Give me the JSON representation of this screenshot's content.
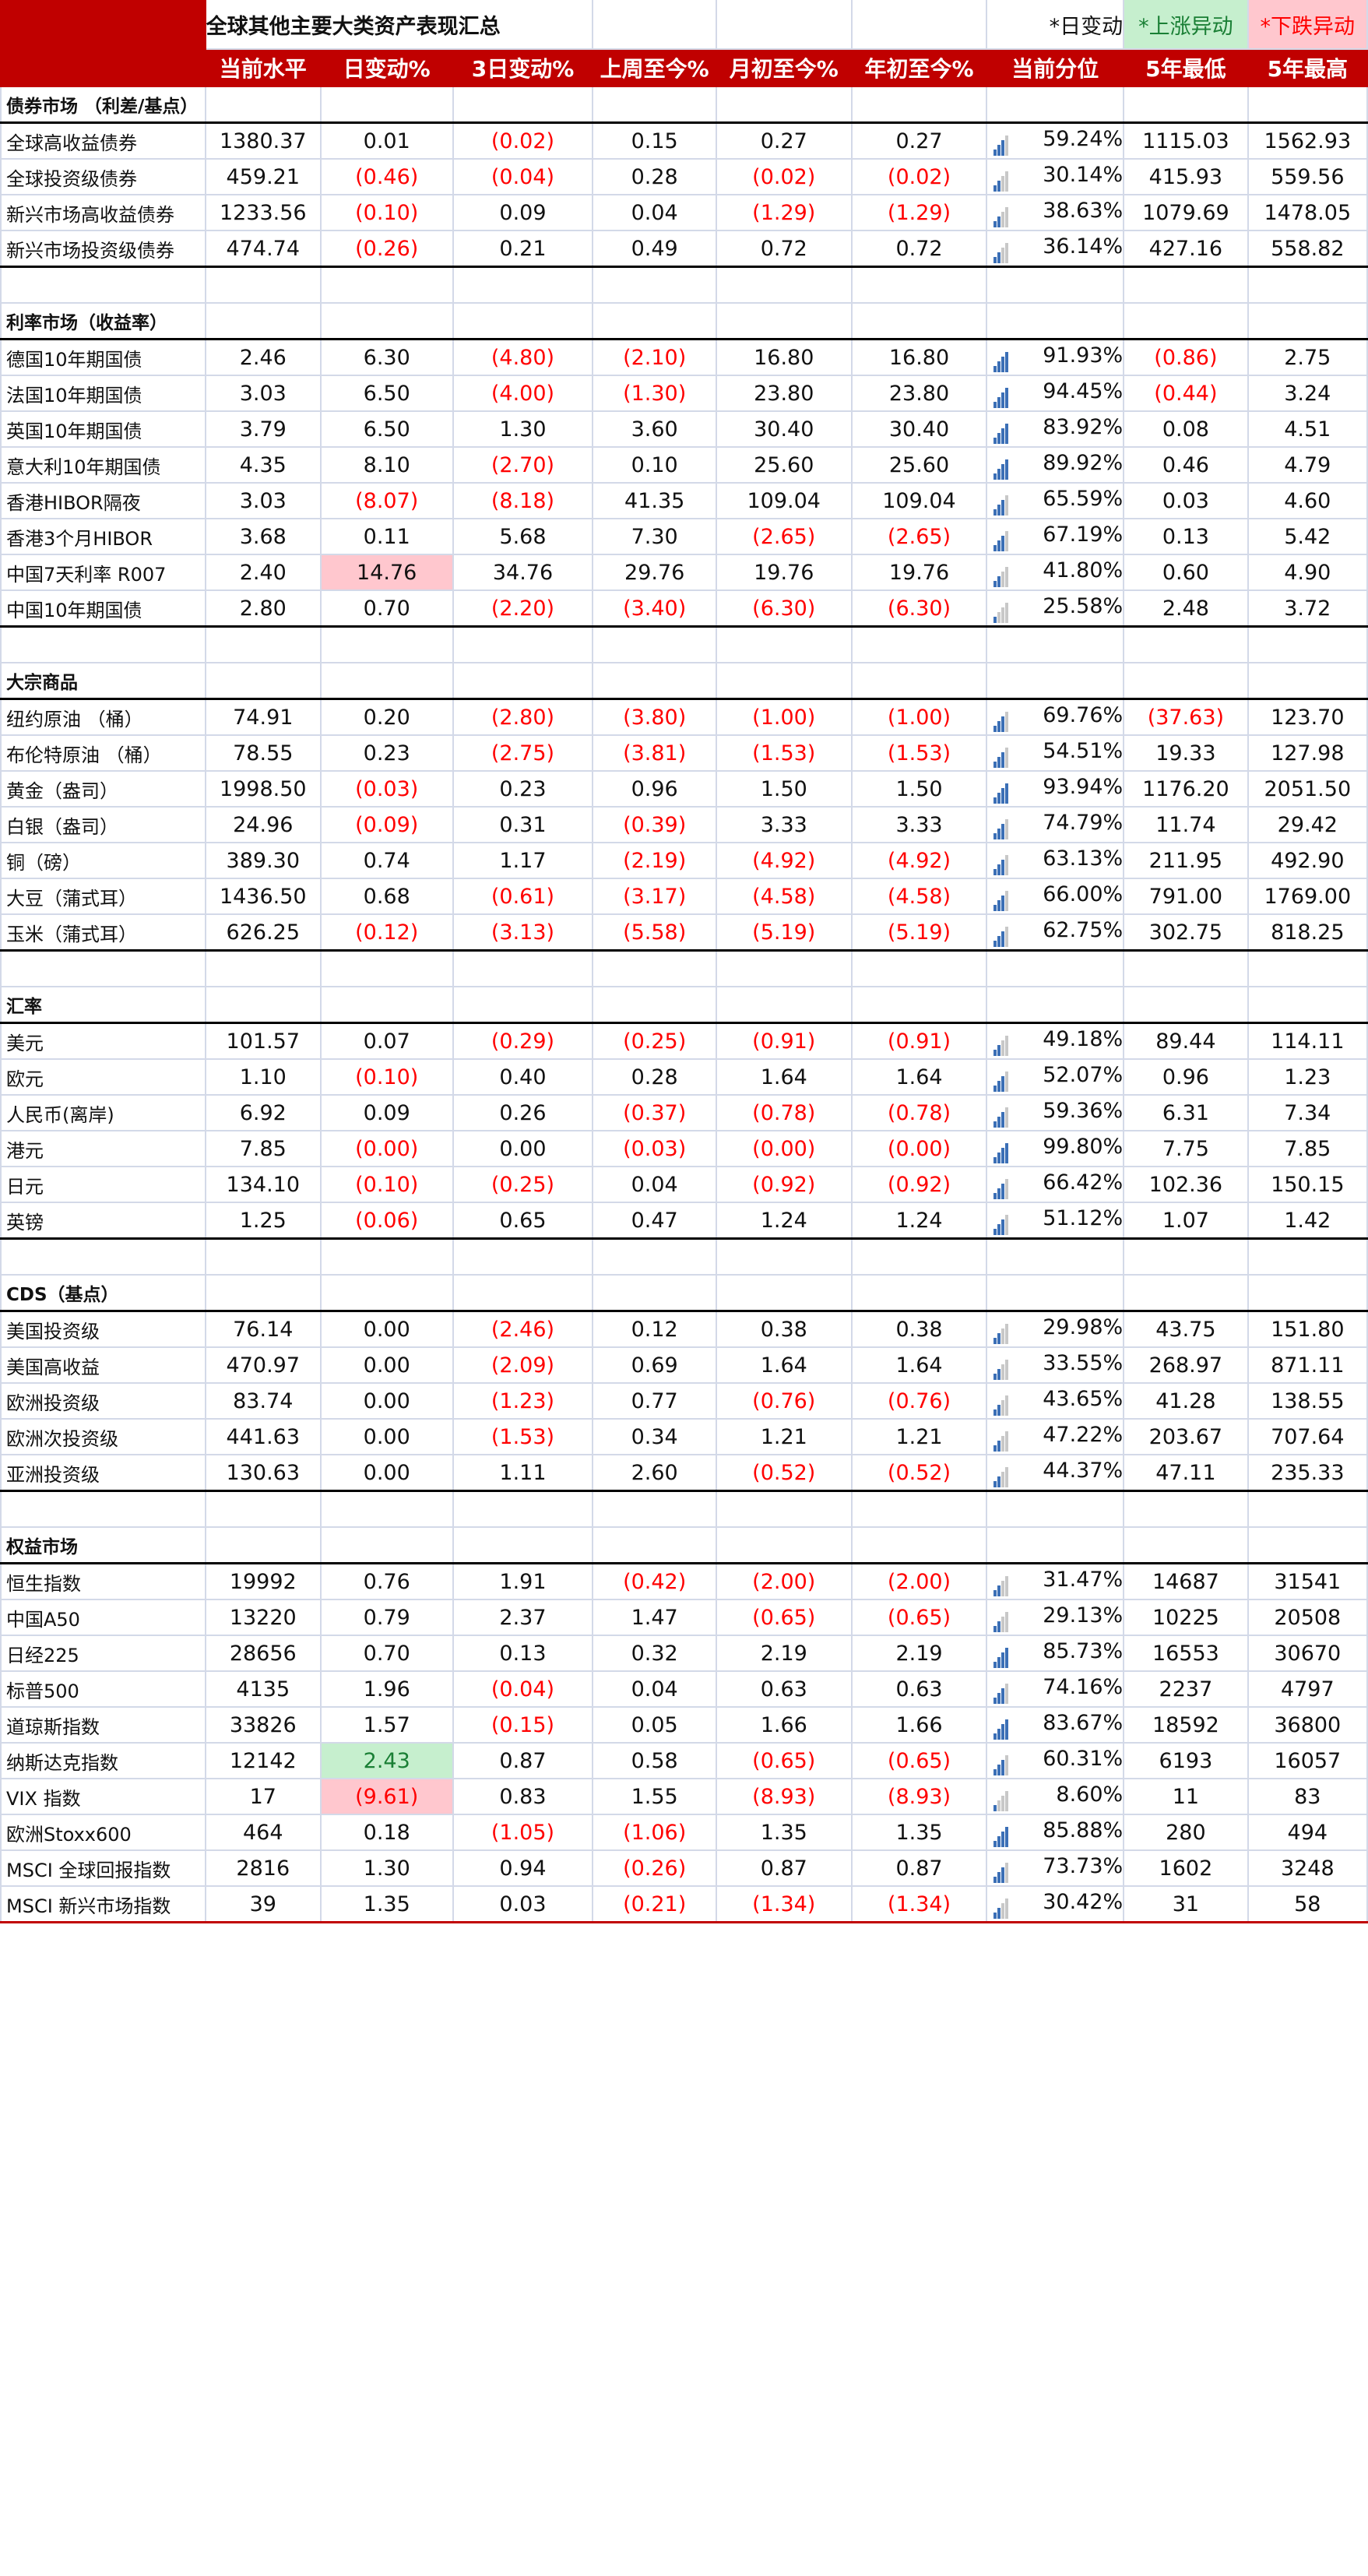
{
  "title": "全球其他主要大类资产表现汇总",
  "legend": {
    "daily": "*日变动",
    "up": "*上涨异动",
    "down": "*下跌异动"
  },
  "columns": [
    "当前水平",
    "日变动%",
    "3日变动%",
    "上周至今%",
    "月初至今%",
    "年初至今%",
    "当前分位",
    "5年最低",
    "5年最高"
  ],
  "colors": {
    "header_bg": "#c00000",
    "negative": "#ff0000",
    "up_highlight": "#c6efce",
    "down_highlight": "#ffc7ce",
    "bar_on": "#3b6fb6",
    "bar_off": "#c8c8c8"
  },
  "sections": [
    {
      "name": "债券市场 （利差/基点）",
      "rows": [
        {
          "label": "全球高收益债券",
          "v": [
            "1380.37",
            "0.01",
            "(0.02)",
            "0.15",
            "0.27",
            "0.27",
            "59.24%",
            "1115.03",
            "1562.93"
          ],
          "bars": 3
        },
        {
          "label": "全球投资级债券",
          "v": [
            "459.21",
            "(0.46)",
            "(0.04)",
            "0.28",
            "(0.02)",
            "(0.02)",
            "30.14%",
            "415.93",
            "559.56"
          ],
          "bars": 2
        },
        {
          "label": "新兴市场高收益债券",
          "v": [
            "1233.56",
            "(0.10)",
            "0.09",
            "0.04",
            "(1.29)",
            "(1.29)",
            "38.63%",
            "1079.69",
            "1478.05"
          ],
          "bars": 2
        },
        {
          "label": "新兴市场投资级债券",
          "v": [
            "474.74",
            "(0.26)",
            "0.21",
            "0.49",
            "0.72",
            "0.72",
            "36.14%",
            "427.16",
            "558.82"
          ],
          "bars": 2
        }
      ]
    },
    {
      "name": "利率市场（收益率）",
      "rows": [
        {
          "label": "德国10年期国债",
          "v": [
            "2.46",
            "6.30",
            "(4.80)",
            "(2.10)",
            "16.80",
            "16.80",
            "91.93%",
            "(0.86)",
            "2.75"
          ],
          "bars": 4
        },
        {
          "label": "法国10年期国债",
          "v": [
            "3.03",
            "6.50",
            "(4.00)",
            "(1.30)",
            "23.80",
            "23.80",
            "94.45%",
            "(0.44)",
            "3.24"
          ],
          "bars": 4
        },
        {
          "label": "英国10年期国债",
          "v": [
            "3.79",
            "6.50",
            "1.30",
            "3.60",
            "30.40",
            "30.40",
            "83.92%",
            "0.08",
            "4.51"
          ],
          "bars": 4
        },
        {
          "label": "意大利10年期国债",
          "v": [
            "4.35",
            "8.10",
            "(2.70)",
            "0.10",
            "25.60",
            "25.60",
            "89.92%",
            "0.46",
            "4.79"
          ],
          "bars": 4
        },
        {
          "label": "香港HIBOR隔夜",
          "v": [
            "3.03",
            "(8.07)",
            "(8.18)",
            "41.35",
            "109.04",
            "109.04",
            "65.59%",
            "0.03",
            "4.60"
          ],
          "bars": 3
        },
        {
          "label": "香港3个月HIBOR",
          "v": [
            "3.68",
            "0.11",
            "5.68",
            "7.30",
            "(2.65)",
            "(2.65)",
            "67.19%",
            "0.13",
            "5.42"
          ],
          "bars": 3
        },
        {
          "label": "中国7天利率 R007",
          "v": [
            "2.40",
            "14.76",
            "34.76",
            "29.76",
            "19.76",
            "19.76",
            "41.80%",
            "0.60",
            "4.90"
          ],
          "bars": 2,
          "hl": "down"
        },
        {
          "label": "中国10年期国债",
          "v": [
            "2.80",
            "0.70",
            "(2.20)",
            "(3.40)",
            "(6.30)",
            "(6.30)",
            "25.58%",
            "2.48",
            "3.72"
          ],
          "bars": 1
        }
      ]
    },
    {
      "name": "大宗商品",
      "rows": [
        {
          "label": "纽约原油 （桶）",
          "v": [
            "74.91",
            "0.20",
            "(2.80)",
            "(3.80)",
            "(1.00)",
            "(1.00)",
            "69.76%",
            "(37.63)",
            "123.70"
          ],
          "bars": 3
        },
        {
          "label": "布伦特原油 （桶）",
          "v": [
            "78.55",
            "0.23",
            "(2.75)",
            "(3.81)",
            "(1.53)",
            "(1.53)",
            "54.51%",
            "19.33",
            "127.98"
          ],
          "bars": 3
        },
        {
          "label": "黄金（盎司）",
          "v": [
            "1998.50",
            "(0.03)",
            "0.23",
            "0.96",
            "1.50",
            "1.50",
            "93.94%",
            "1176.20",
            "2051.50"
          ],
          "bars": 4
        },
        {
          "label": "白银（盎司）",
          "v": [
            "24.96",
            "(0.09)",
            "0.31",
            "(0.39)",
            "3.33",
            "3.33",
            "74.79%",
            "11.74",
            "29.42"
          ],
          "bars": 3
        },
        {
          "label": "铜（磅）",
          "v": [
            "389.30",
            "0.74",
            "1.17",
            "(2.19)",
            "(4.92)",
            "(4.92)",
            "63.13%",
            "211.95",
            "492.90"
          ],
          "bars": 3
        },
        {
          "label": "大豆（蒲式耳）",
          "v": [
            "1436.50",
            "0.68",
            "(0.61)",
            "(3.17)",
            "(4.58)",
            "(4.58)",
            "66.00%",
            "791.00",
            "1769.00"
          ],
          "bars": 3
        },
        {
          "label": "玉米（蒲式耳）",
          "v": [
            "626.25",
            "(0.12)",
            "(3.13)",
            "(5.58)",
            "(5.19)",
            "(5.19)",
            "62.75%",
            "302.75",
            "818.25"
          ],
          "bars": 3
        }
      ]
    },
    {
      "name": "汇率",
      "rows": [
        {
          "label": "美元",
          "v": [
            "101.57",
            "0.07",
            "(0.29)",
            "(0.25)",
            "(0.91)",
            "(0.91)",
            "49.18%",
            "89.44",
            "114.11"
          ],
          "bars": 2
        },
        {
          "label": "欧元",
          "v": [
            "1.10",
            "(0.10)",
            "0.40",
            "0.28",
            "1.64",
            "1.64",
            "52.07%",
            "0.96",
            "1.23"
          ],
          "bars": 3
        },
        {
          "label": "人民币(离岸)",
          "v": [
            "6.92",
            "0.09",
            "0.26",
            "(0.37)",
            "(0.78)",
            "(0.78)",
            "59.36%",
            "6.31",
            "7.34"
          ],
          "bars": 3
        },
        {
          "label": "港元",
          "v": [
            "7.85",
            "(0.00)",
            "0.00",
            "(0.03)",
            "(0.00)",
            "(0.00)",
            "99.80%",
            "7.75",
            "7.85"
          ],
          "bars": 4
        },
        {
          "label": "日元",
          "v": [
            "134.10",
            "(0.10)",
            "(0.25)",
            "0.04",
            "(0.92)",
            "(0.92)",
            "66.42%",
            "102.36",
            "150.15"
          ],
          "bars": 3
        },
        {
          "label": "英镑",
          "v": [
            "1.25",
            "(0.06)",
            "0.65",
            "0.47",
            "1.24",
            "1.24",
            "51.12%",
            "1.07",
            "1.42"
          ],
          "bars": 3
        }
      ]
    },
    {
      "name": "CDS（基点）",
      "rows": [
        {
          "label": "美国投资级",
          "v": [
            "76.14",
            "0.00",
            "(2.46)",
            "0.12",
            "0.38",
            "0.38",
            "29.98%",
            "43.75",
            "151.80"
          ],
          "bars": 2
        },
        {
          "label": "美国高收益",
          "v": [
            "470.97",
            "0.00",
            "(2.09)",
            "0.69",
            "1.64",
            "1.64",
            "33.55%",
            "268.97",
            "871.11"
          ],
          "bars": 2
        },
        {
          "label": "欧洲投资级",
          "v": [
            "83.74",
            "0.00",
            "(1.23)",
            "0.77",
            "(0.76)",
            "(0.76)",
            "43.65%",
            "41.28",
            "138.55"
          ],
          "bars": 2
        },
        {
          "label": "欧洲次投资级",
          "v": [
            "441.63",
            "0.00",
            "(1.53)",
            "0.34",
            "1.21",
            "1.21",
            "47.22%",
            "203.67",
            "707.64"
          ],
          "bars": 2
        },
        {
          "label": "亚洲投资级",
          "v": [
            "130.63",
            "0.00",
            "1.11",
            "2.60",
            "(0.52)",
            "(0.52)",
            "44.37%",
            "47.11",
            "235.33"
          ],
          "bars": 2
        }
      ]
    },
    {
      "name": "权益市场",
      "rows": [
        {
          "label": "恒生指数",
          "v": [
            "19992",
            "0.76",
            "1.91",
            "(0.42)",
            "(2.00)",
            "(2.00)",
            "31.47%",
            "14687",
            "31541"
          ],
          "bars": 2
        },
        {
          "label": "中国A50",
          "v": [
            "13220",
            "0.79",
            "2.37",
            "1.47",
            "(0.65)",
            "(0.65)",
            "29.13%",
            "10225",
            "20508"
          ],
          "bars": 2
        },
        {
          "label": "日经225",
          "v": [
            "28656",
            "0.70",
            "0.13",
            "0.32",
            "2.19",
            "2.19",
            "85.73%",
            "16553",
            "30670"
          ],
          "bars": 4
        },
        {
          "label": "标普500",
          "v": [
            "4135",
            "1.96",
            "(0.04)",
            "0.04",
            "0.63",
            "0.63",
            "74.16%",
            "2237",
            "4797"
          ],
          "bars": 3
        },
        {
          "label": "道琼斯指数",
          "v": [
            "33826",
            "1.57",
            "(0.15)",
            "0.05",
            "1.66",
            "1.66",
            "83.67%",
            "18592",
            "36800"
          ],
          "bars": 4
        },
        {
          "label": "纳斯达克指数",
          "v": [
            "12142",
            "2.43",
            "0.87",
            "0.58",
            "(0.65)",
            "(0.65)",
            "60.31%",
            "6193",
            "16057"
          ],
          "bars": 3,
          "hl": "up"
        },
        {
          "label": "VIX 指数",
          "v": [
            "17",
            "(9.61)",
            "0.83",
            "1.55",
            "(8.93)",
            "(8.93)",
            "8.60%",
            "11",
            "83"
          ],
          "bars": 1,
          "hl": "down"
        },
        {
          "label": "欧洲Stoxx600",
          "v": [
            "464",
            "0.18",
            "(1.05)",
            "(1.06)",
            "1.35",
            "1.35",
            "85.88%",
            "280",
            "494"
          ],
          "bars": 4
        },
        {
          "label": "MSCI 全球回报指数",
          "v": [
            "2816",
            "1.30",
            "0.94",
            "(0.26)",
            "0.87",
            "0.87",
            "73.73%",
            "1602",
            "3248"
          ],
          "bars": 3
        },
        {
          "label": "MSCI 新兴市场指数",
          "v": [
            "39",
            "1.35",
            "0.03",
            "(0.21)",
            "(1.34)",
            "(1.34)",
            "30.42%",
            "31",
            "58"
          ],
          "bars": 2
        }
      ]
    }
  ]
}
